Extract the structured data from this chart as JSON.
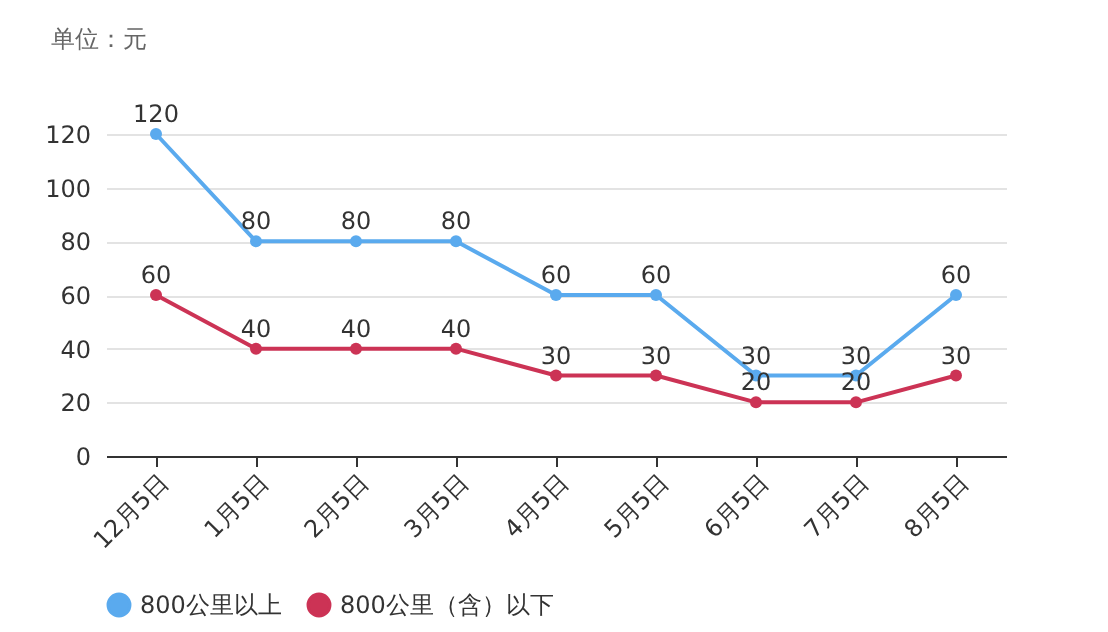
{
  "chart_data": {
    "type": "line",
    "ylabel": "单位：元",
    "categories": [
      "12月5日",
      "1月5日",
      "2月5日",
      "3月5日",
      "4月5日",
      "5月5日",
      "6月5日",
      "7月5日",
      "8月5日"
    ],
    "series": [
      {
        "name": "800公里以上",
        "color": "#5aaaee",
        "values": [
          120,
          80,
          80,
          80,
          60,
          60,
          30,
          30,
          60
        ]
      },
      {
        "name": "800公里（含）以下",
        "color": "#cc3355",
        "values": [
          60,
          40,
          40,
          40,
          30,
          30,
          20,
          20,
          30
        ]
      }
    ],
    "ylim": [
      0,
      120
    ],
    "yticks": [
      0,
      20,
      40,
      60,
      80,
      100,
      120
    ],
    "grid": "y",
    "legend": "bottom",
    "marker": "circle",
    "data_labels": true
  }
}
